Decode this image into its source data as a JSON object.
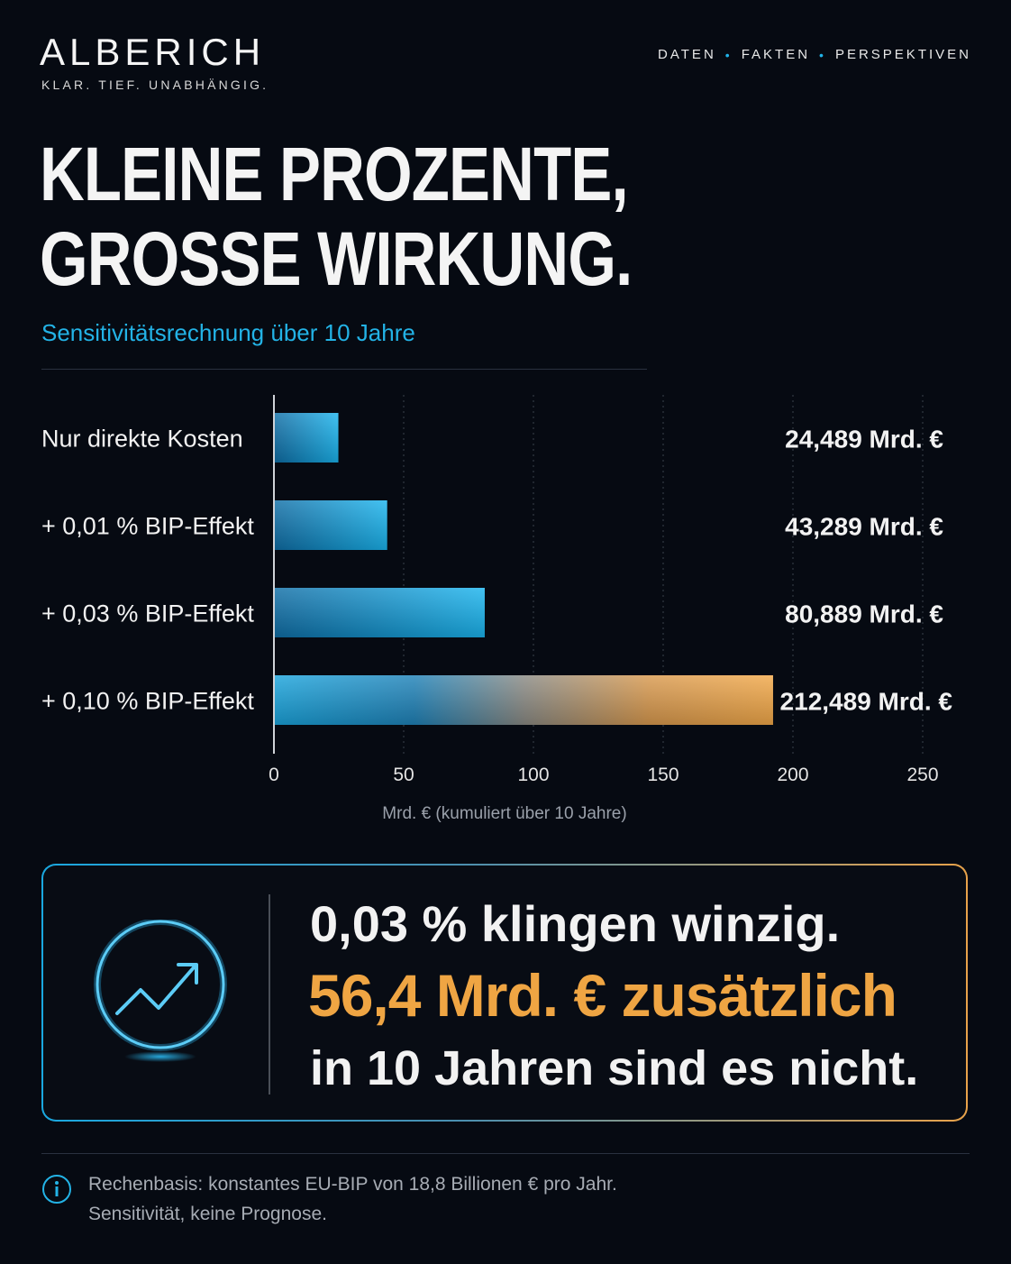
{
  "brand": {
    "name": "ALBERICH",
    "tagline": "KLAR. TIEF. UNABHÄNGIG."
  },
  "nav": {
    "items": [
      "DATEN",
      "FAKTEN",
      "PERSPEKTIVEN"
    ]
  },
  "headline": {
    "line1": "KLEINE PROZENTE,",
    "line2": "GROSSE WIRKUNG."
  },
  "subtitle": "Sensitivitätsrechnung über 10 Jahre",
  "chart_data": {
    "type": "bar",
    "orientation": "horizontal",
    "categories": [
      "Nur direkte Kosten",
      "+ 0,01 % BIP-Effekt",
      "+ 0,03 % BIP-Effekt",
      "+ 0,10 % BIP-Effekt"
    ],
    "values": [
      24.489,
      43.289,
      80.889,
      212.489
    ],
    "value_labels": [
      "24,489 Mrd. €",
      "43,289 Mrd. €",
      "80,889 Mrd. €",
      "212,489 Mrd. €"
    ],
    "xticks": [
      0,
      50,
      100,
      150,
      200,
      250
    ],
    "xlim": [
      0,
      250
    ],
    "xlabel": "Mrd. € (kumuliert über 10 Jahre)",
    "grid": "vertical-dotted",
    "colors": {
      "bar": "#1ab0ea",
      "highlight": "#f0a548",
      "highlight_label": "#efa543"
    }
  },
  "callout": {
    "line1": "0,03 % klingen winzig.",
    "line2": "56,4 Mrd. € zusätzlich",
    "line3": "in 10 Jahren sind es nicht.",
    "icon": "trend-up-icon"
  },
  "footer": {
    "line1": "Rechenbasis: konstantes EU-BIP von 18,8 Billionen € pro Jahr.",
    "line2": "Sensitivität, keine Prognose.",
    "icon": "info-icon"
  }
}
